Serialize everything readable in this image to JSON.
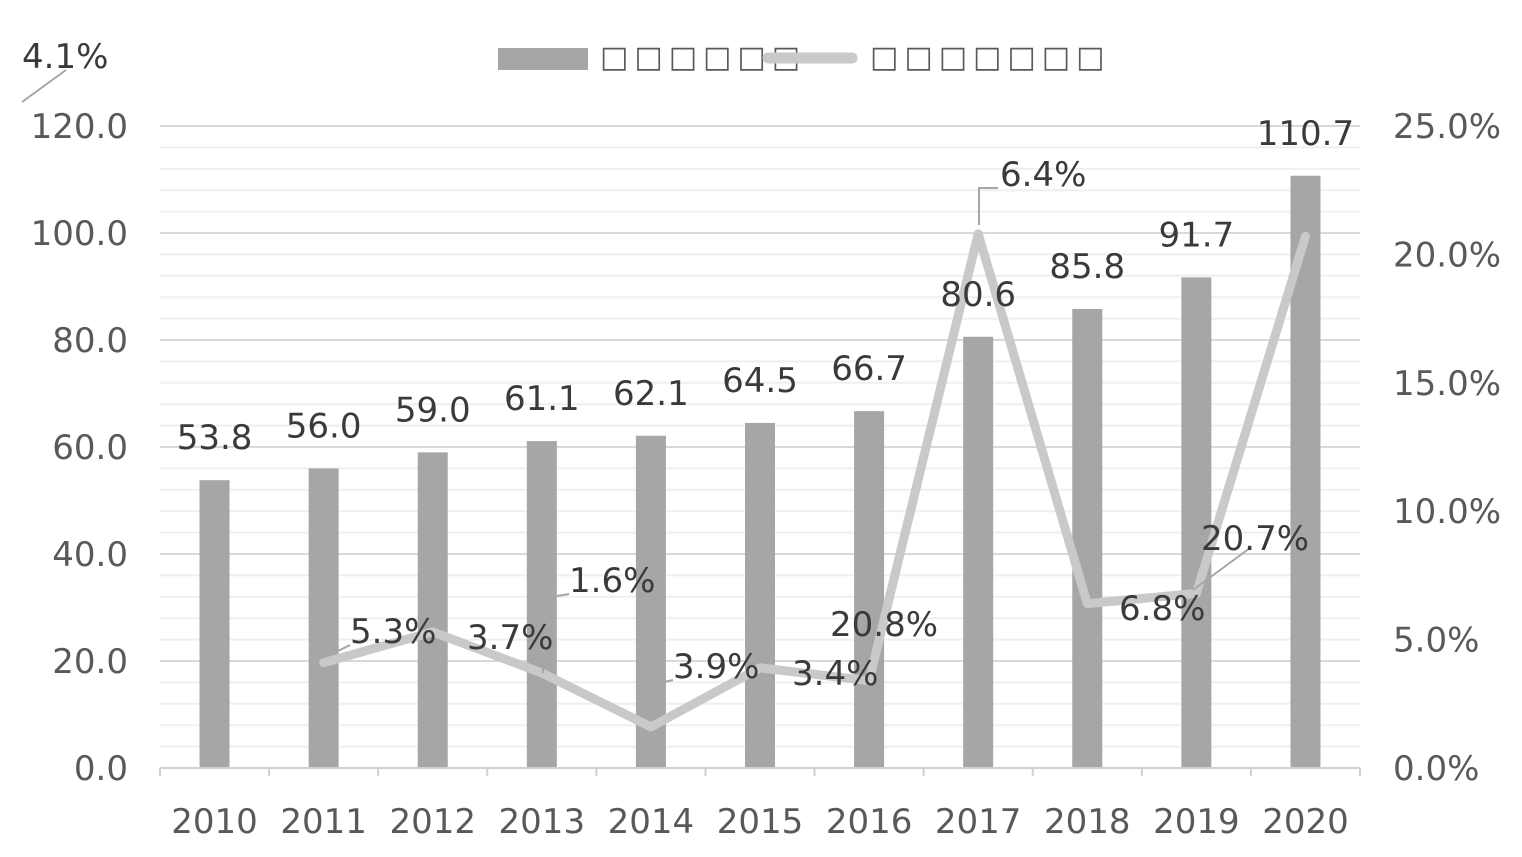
{
  "chart_data": {
    "type": "bar",
    "categories": [
      "2010",
      "2011",
      "2012",
      "2013",
      "2014",
      "2015",
      "2016",
      "2017",
      "2018",
      "2019",
      "2020"
    ],
    "series": [
      {
        "type": "bar",
        "name": "□□□□□□",
        "axis": "left",
        "values": [
          53.8,
          56.0,
          59.0,
          61.1,
          62.1,
          64.5,
          66.7,
          80.6,
          85.8,
          91.7,
          110.7
        ],
        "labels": [
          "53.8",
          "56.0",
          "59.0",
          "61.1",
          "62.1",
          "64.5",
          "66.7",
          "80.6",
          "85.8",
          "91.7",
          "110.7"
        ],
        "color": "#a6a6a6"
      },
      {
        "type": "line",
        "name": "□□□□□□□",
        "axis": "right",
        "values": [
          null,
          4.1,
          5.3,
          3.7,
          1.6,
          3.9,
          3.4,
          20.8,
          6.4,
          6.8,
          20.7
        ],
        "labels": [
          "",
          "4.1%",
          "5.3%",
          "3.7%",
          "1.6%",
          "3.9%",
          "3.4%",
          "20.8%",
          "6.4%",
          "6.8%",
          "20.7%"
        ],
        "color": "#c9c9c9"
      }
    ],
    "y_left": {
      "min": 0,
      "max": 120,
      "ticks": [
        "0.0",
        "20.0",
        "40.0",
        "60.0",
        "80.0",
        "100.0",
        "120.0"
      ]
    },
    "y_right": {
      "min": 0,
      "max": 25,
      "ticks": [
        "0.0%",
        "5.0%",
        "10.0%",
        "15.0%",
        "20.0%",
        "25.0%"
      ]
    },
    "legend_position": "top",
    "grid": true
  }
}
